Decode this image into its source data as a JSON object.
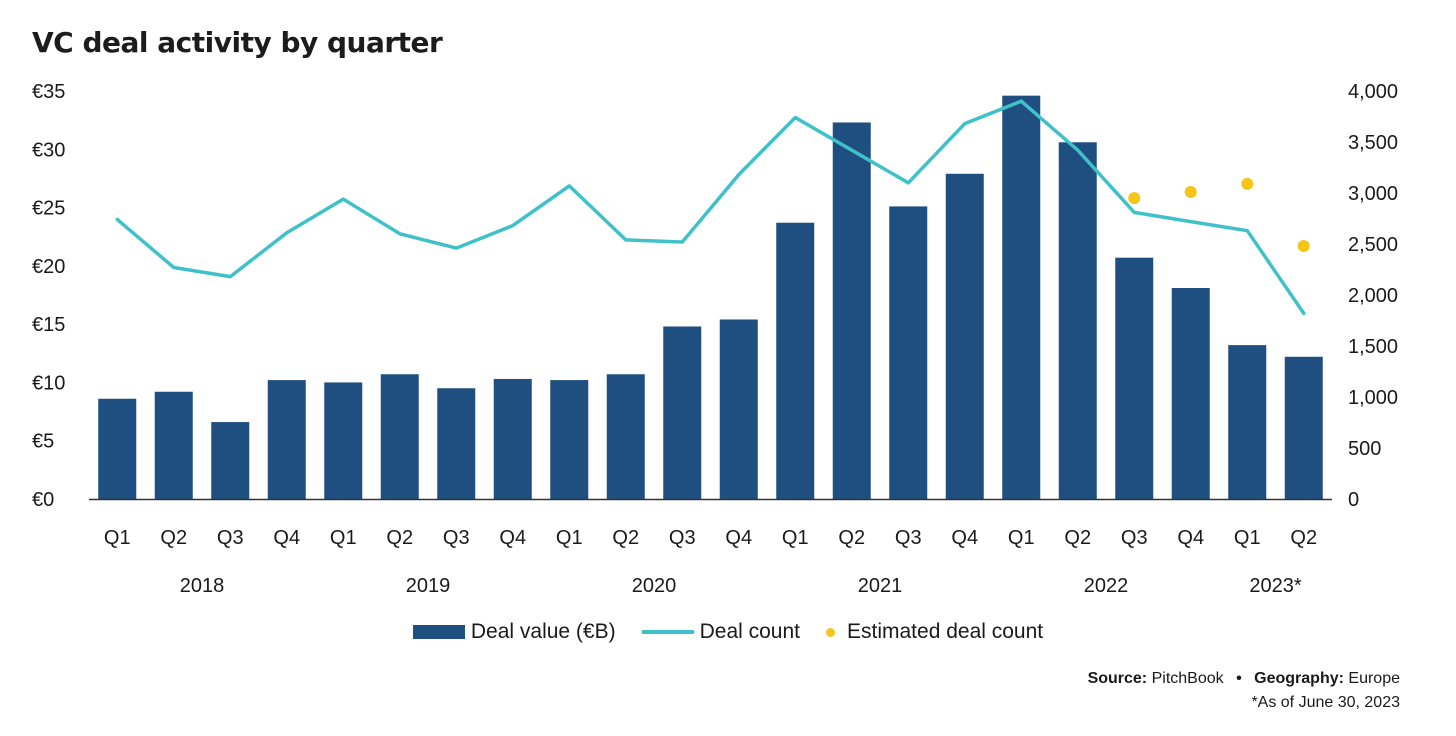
{
  "title": "VC deal activity by quarter",
  "chart_data": {
    "type": "bar",
    "title": "VC deal activity by quarter",
    "quarters": [
      "Q1",
      "Q2",
      "Q3",
      "Q4",
      "Q1",
      "Q2",
      "Q3",
      "Q4",
      "Q1",
      "Q2",
      "Q3",
      "Q4",
      "Q1",
      "Q2",
      "Q3",
      "Q4",
      "Q1",
      "Q2",
      "Q3",
      "Q4",
      "Q1",
      "Q2"
    ],
    "years": [
      {
        "label": "2018",
        "first": 0,
        "last": 3
      },
      {
        "label": "2019",
        "first": 4,
        "last": 7
      },
      {
        "label": "2020",
        "first": 8,
        "last": 11
      },
      {
        "label": "2021",
        "first": 12,
        "last": 15
      },
      {
        "label": "2022",
        "first": 16,
        "last": 19
      },
      {
        "label": "2023*",
        "first": 20,
        "last": 21
      }
    ],
    "series": [
      {
        "name": "Deal value (€B)",
        "type": "bar",
        "axis": "left",
        "values": [
          8.6,
          9.2,
          6.6,
          10.2,
          10.0,
          10.7,
          9.5,
          10.3,
          10.2,
          10.7,
          14.8,
          15.4,
          23.7,
          32.3,
          25.1,
          27.9,
          34.6,
          30.6,
          20.7,
          18.1,
          13.2,
          12.2
        ]
      },
      {
        "name": "Deal count",
        "type": "line",
        "axis": "right",
        "values": [
          2740,
          2270,
          2180,
          2610,
          2940,
          2600,
          2460,
          2680,
          3070,
          2540,
          2520,
          3180,
          3740,
          3420,
          3100,
          3680,
          3900,
          3420,
          2810,
          2720,
          2630,
          1820
        ]
      },
      {
        "name": "Estimated deal count",
        "type": "scatter",
        "axis": "right",
        "points": [
          {
            "index": 18,
            "value": 2950
          },
          {
            "index": 19,
            "value": 3010
          },
          {
            "index": 20,
            "value": 3090
          },
          {
            "index": 21,
            "value": 2480
          }
        ]
      }
    ],
    "y_left": {
      "min": 0,
      "max": 35,
      "ticks": [
        0,
        5,
        10,
        15,
        20,
        25,
        30,
        35
      ],
      "tick_labels": [
        "€0",
        "€5",
        "€10",
        "€15",
        "€20",
        "€25",
        "€30",
        "€35"
      ]
    },
    "y_right": {
      "min": 0,
      "max": 4000,
      "ticks": [
        0,
        500,
        1000,
        1500,
        2000,
        2500,
        3000,
        3500,
        4000
      ],
      "tick_labels": [
        "0",
        "500",
        "1,000",
        "1,500",
        "2,000",
        "2,500",
        "3,000",
        "3,500",
        "4,000"
      ]
    },
    "grid": false,
    "legend_position": "bottom-center"
  },
  "colors": {
    "bar": "#1f4e80",
    "line": "#3fc1c9",
    "dot": "#f5c518",
    "axis": "#333333"
  },
  "legend": {
    "bar_label": "Deal value (€B)",
    "line_label": "Deal count",
    "dot_label": "Estimated deal count"
  },
  "footer": {
    "source_key": "Source:",
    "source_value": "PitchBook",
    "separator": "•",
    "geo_key": "Geography:",
    "geo_value": "Europe",
    "note": "*As of June 30, 2023"
  }
}
